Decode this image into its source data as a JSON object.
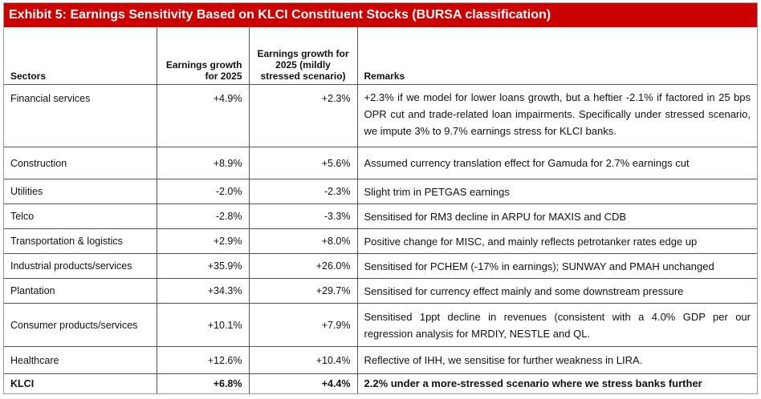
{
  "title": "Exhibit 5: Earnings Sensitivity Based on KLCI Constituent Stocks (BURSA classification)",
  "headers": {
    "sectors": "Sectors",
    "growth": "Earnings growth for 2025",
    "stressed": "Earnings growth for 2025 (mildly stressed scenario)",
    "remarks": "Remarks"
  },
  "rows": [
    {
      "sector": "Financial services",
      "growth": "+4.9%",
      "stressed": "+2.3%",
      "remarks": "+2.3% if we model for lower loans growth, but a heftier -2.1% if factored in 25 bps OPR cut and trade-related loan impairments. Specifically under stressed scenario, we impute 3% to 9.7% earnings stress for KLCI banks."
    },
    {
      "sector": "Construction",
      "growth": "+8.9%",
      "stressed": "+5.6%",
      "remarks": "Assumed currency translation effect for Gamuda for 2.7% earnings cut"
    },
    {
      "sector": "Utilities",
      "growth": "-2.0%",
      "stressed": "-2.3%",
      "remarks": "Slight trim in PETGAS earnings"
    },
    {
      "sector": "Telco",
      "growth": "-2.8%",
      "stressed": "-3.3%",
      "remarks": "Sensitised for RM3 decline in ARPU for MAXIS and CDB"
    },
    {
      "sector": "Transportation & logistics",
      "growth": "+2.9%",
      "stressed": "+8.0%",
      "remarks": "Positive change for MISC, and mainly reflects petrotanker rates edge up"
    },
    {
      "sector": "Industrial products/services",
      "growth": "+35.9%",
      "stressed": "+26.0%",
      "remarks": "Sensitised for PCHEM (-17% in earnings); SUNWAY and PMAH unchanged"
    },
    {
      "sector": "Plantation",
      "growth": "+34.3%",
      "stressed": "+29.7%",
      "remarks": "Sensitised for currency effect mainly and some downstream pressure"
    },
    {
      "sector": "Consumer products/services",
      "growth": "+10.1%",
      "stressed": "+7.9%",
      "remarks": "Sensitised 1ppt decline in revenues (consistent with a 4.0% GDP per our regression analysis for MRDIY, NESTLE and QL."
    },
    {
      "sector": "Healthcare",
      "growth": "+12.6%",
      "stressed": "+10.4%",
      "remarks": "Reflective of IHH, we sensitise for further weakness in LIRA."
    },
    {
      "sector": "KLCI",
      "growth": "+6.8%",
      "stressed": "+4.4%",
      "remarks": "2.2% under a more-stressed scenario where we stress banks further"
    }
  ],
  "colors": {
    "title_bg": "#cc0000",
    "title_text": "#ffffff"
  }
}
